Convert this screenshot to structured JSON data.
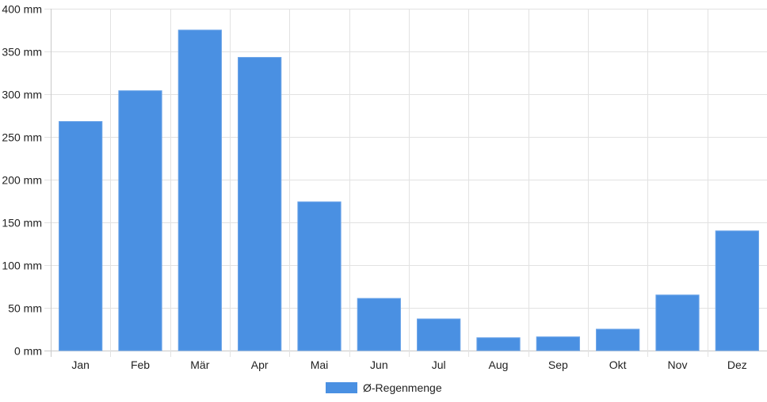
{
  "chart_data": {
    "type": "bar",
    "categories": [
      "Jan",
      "Feb",
      "Mär",
      "Apr",
      "Mai",
      "Jun",
      "Jul",
      "Aug",
      "Sep",
      "Okt",
      "Nov",
      "Dez"
    ],
    "series": [
      {
        "name": "Ø-Regenmenge",
        "color": "#4a90e2",
        "values": [
          268,
          304,
          375,
          343,
          174,
          61,
          37,
          15,
          16,
          25,
          65,
          140
        ]
      }
    ],
    "y_unit": "mm",
    "ylim": [
      0,
      400
    ],
    "yticks": [
      0,
      50,
      100,
      150,
      200,
      250,
      300,
      350,
      400
    ],
    "ytick_labels": [
      "0 mm",
      "50 mm",
      "100 mm",
      "150 mm",
      "200 mm",
      "250 mm",
      "300 mm",
      "350 mm",
      "400 mm"
    ],
    "grid": true,
    "legend_position": "bottom-center"
  }
}
